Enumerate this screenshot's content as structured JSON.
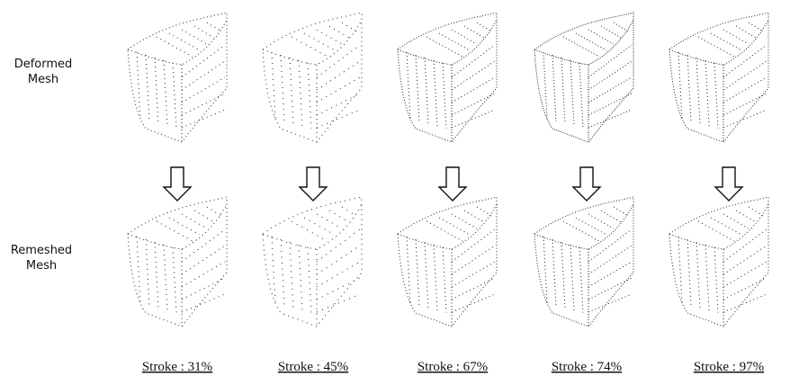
{
  "rows": [
    {
      "label_lines": [
        "Deformed",
        "Mesh"
      ]
    },
    {
      "label_lines": [
        "Remeshed",
        "Mesh"
      ]
    }
  ],
  "columns": [
    {
      "label": "Stroke : 31%"
    },
    {
      "label": "Stroke : 45%"
    },
    {
      "label": "Stroke : 67%"
    },
    {
      "label": "Stroke : 74%"
    },
    {
      "label": "Stroke : 97%"
    }
  ]
}
